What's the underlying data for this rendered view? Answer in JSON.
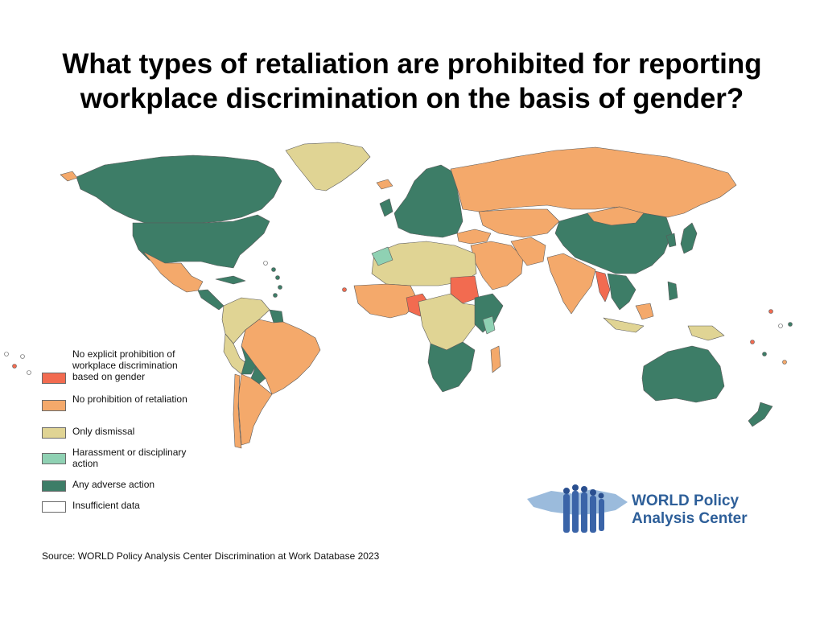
{
  "title": {
    "line1": "What types of retaliation are prohibited for reporting",
    "line2": "workplace discrimination on the basis of gender?"
  },
  "legend": [
    {
      "label": "No explicit prohibition of workplace discrimination based on gender",
      "color": "#f26b50"
    },
    {
      "label": "No prohibition of retaliation",
      "color": "#f4a96b"
    },
    {
      "label": "Only dismissal",
      "color": "#e0d494"
    },
    {
      "label": "Harassment or disciplinary action",
      "color": "#8fd1b3"
    },
    {
      "label": "Any adverse action",
      "color": "#3d7d67"
    },
    {
      "label": "Insufficient data",
      "color": "#ffffff"
    }
  ],
  "logo": {
    "line1": "WORLD Policy",
    "line2": "Analysis Center",
    "color": "#2e5f99"
  },
  "source": "Source: WORLD Policy Analysis Center Discrimination at Work Database 2023"
}
